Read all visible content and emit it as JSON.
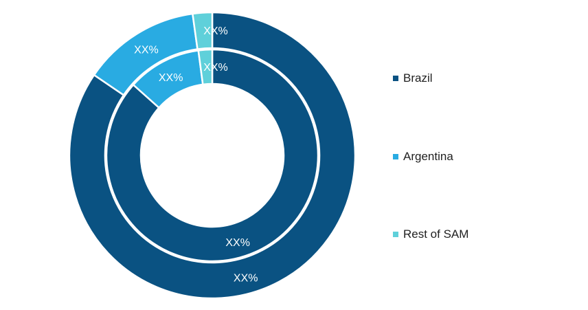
{
  "chart_data": {
    "type": "pie",
    "variant": "nested-donut",
    "categories": [
      "Brazil",
      "Argentina",
      "Rest of SAM"
    ],
    "colors": [
      "#0a5282",
      "#29abe2",
      "#5fd0da"
    ],
    "series": [
      {
        "ring": "outer",
        "values": [
          84.5,
          13.3,
          2.2
        ],
        "labels": [
          "XX%",
          "XX%",
          "XX%"
        ]
      },
      {
        "ring": "inner",
        "values": [
          86.6,
          11.3,
          2.1
        ],
        "labels": [
          "XX%",
          "XX%",
          "XX%"
        ]
      }
    ],
    "legend": {
      "position": "right",
      "entries": [
        "Brazil",
        "Argentina",
        "Rest of SAM"
      ]
    }
  }
}
